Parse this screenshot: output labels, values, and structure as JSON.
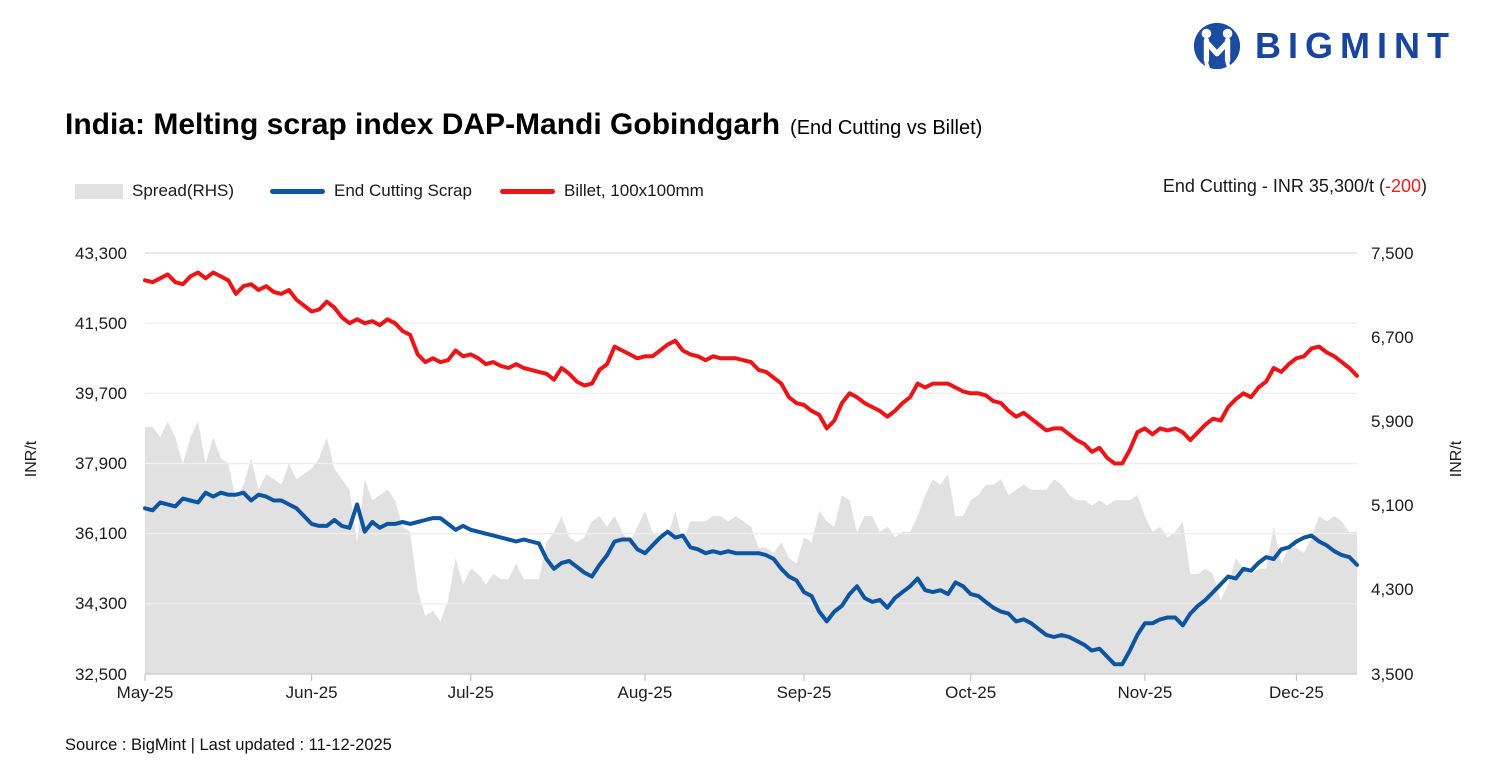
{
  "logo": {
    "text": "BIGMINT",
    "icon": "bigmint-people-m-icon",
    "brand_color": "#1845A0"
  },
  "title": {
    "main": "India: Melting scrap index DAP-Mandi Gobindgarh",
    "suffix": "(End Cutting vs Billet)"
  },
  "legend": {
    "items": [
      {
        "label": "Spread(RHS)",
        "swatch": "area",
        "color": "#e1e1e1"
      },
      {
        "label": "End Cutting Scrap",
        "swatch": "line",
        "color": "#0D55A1"
      },
      {
        "label": "Billet, 100x100mm",
        "swatch": "line",
        "color": "#EB1416"
      }
    ]
  },
  "annotation": {
    "prefix": "End Cutting - INR 35,300/t (",
    "delta": "-200",
    "suffix": ")"
  },
  "source": "Source : BigMint | Last updated : 11-12-2025",
  "chart_data": {
    "type": "line",
    "title": "India: Melting scrap index DAP-Mandi Gobindgarh (End Cutting vs Billet)",
    "x_range": "May-25 to 11-Dec-25, daily (weekdays)",
    "grid": "horizontal-only",
    "legend_position": "top-left",
    "left_axis": {
      "label": "INR/t",
      "min": 32500,
      "max": 43300,
      "tick_values": [
        43300,
        41500,
        39700,
        37900,
        36100,
        34300,
        32500
      ],
      "tick_labels": [
        "43,300",
        "41,500",
        "39,700",
        "37,900",
        "36,100",
        "34,300",
        "32,500"
      ]
    },
    "right_axis": {
      "label": "INR/t",
      "min": 3500,
      "max": 7500,
      "tick_values": [
        7500,
        6700,
        5900,
        5100,
        4300,
        3500
      ],
      "tick_labels": [
        "7,500",
        "6,700",
        "5,900",
        "5,100",
        "4,300",
        "3,500"
      ]
    },
    "x_ticks": [
      {
        "label": "May-25",
        "index": 0
      },
      {
        "label": "Jun-25",
        "index": 22
      },
      {
        "label": "Jul-25",
        "index": 43
      },
      {
        "label": "Aug-25",
        "index": 66
      },
      {
        "label": "Sep-25",
        "index": 87
      },
      {
        "label": "Oct-25",
        "index": 109
      },
      {
        "label": "Nov-25",
        "index": 132
      },
      {
        "label": "Dec-25",
        "index": 152
      }
    ],
    "series": [
      {
        "id": "scrap",
        "name": "End Cutting Scrap",
        "axis": "left",
        "color": "#0D55A1",
        "last_value": 35300,
        "last_change": -200,
        "values": [
          36750,
          36700,
          36900,
          36850,
          36800,
          37000,
          36950,
          36900,
          37150,
          37050,
          37150,
          37100,
          37100,
          37150,
          36950,
          37100,
          37050,
          36950,
          36950,
          36850,
          36750,
          36550,
          36350,
          36300,
          36300,
          36450,
          36300,
          36250,
          36850,
          36150,
          36400,
          36250,
          36350,
          36350,
          36400,
          36350,
          36400,
          36450,
          36500,
          36500,
          36350,
          36200,
          36300,
          36200,
          36150,
          36100,
          36050,
          36000,
          35950,
          35900,
          35950,
          35900,
          35850,
          35450,
          35200,
          35350,
          35400,
          35250,
          35100,
          35000,
          35300,
          35550,
          35900,
          35950,
          35950,
          35700,
          35600,
          35800,
          36000,
          36150,
          36000,
          36050,
          35750,
          35700,
          35600,
          35650,
          35600,
          35650,
          35600,
          35600,
          35600,
          35600,
          35550,
          35450,
          35200,
          35000,
          34900,
          34600,
          34500,
          34100,
          33850,
          34100,
          34250,
          34550,
          34750,
          34450,
          34350,
          34400,
          34200,
          34450,
          34600,
          34750,
          34950,
          34650,
          34600,
          34650,
          34550,
          34850,
          34750,
          34550,
          34500,
          34350,
          34200,
          34100,
          34050,
          33850,
          33900,
          33800,
          33650,
          33500,
          33450,
          33500,
          33450,
          33350,
          33250,
          33100,
          33150,
          32950,
          32750,
          32750,
          33100,
          33500,
          33800,
          33800,
          33900,
          33950,
          33950,
          33750,
          34050,
          34250,
          34400,
          34600,
          34800,
          35000,
          34950,
          35200,
          35150,
          35350,
          35500,
          35450,
          35700,
          35750,
          35900,
          36000,
          36050,
          35900,
          35800,
          35650,
          35550,
          35500,
          35300
        ]
      },
      {
        "id": "billet",
        "name": "Billet, 100x100mm",
        "axis": "left",
        "color": "#EB1416",
        "values": [
          42600,
          42550,
          42650,
          42750,
          42550,
          42500,
          42700,
          42800,
          42650,
          42800,
          42700,
          42600,
          42250,
          42450,
          42500,
          42350,
          42450,
          42300,
          42250,
          42350,
          42100,
          41950,
          41800,
          41850,
          42050,
          41900,
          41650,
          41500,
          41600,
          41500,
          41550,
          41450,
          41600,
          41500,
          41300,
          41200,
          40700,
          40500,
          40600,
          40500,
          40550,
          40800,
          40650,
          40700,
          40600,
          40450,
          40500,
          40400,
          40350,
          40450,
          40350,
          40300,
          40250,
          40200,
          40050,
          40350,
          40200,
          40000,
          39900,
          39950,
          40300,
          40450,
          40900,
          40800,
          40700,
          40600,
          40650,
          40650,
          40800,
          40950,
          41050,
          40800,
          40700,
          40650,
          40550,
          40650,
          40600,
          40600,
          40600,
          40550,
          40500,
          40300,
          40250,
          40100,
          39950,
          39600,
          39450,
          39400,
          39250,
          39150,
          38800,
          39000,
          39450,
          39700,
          39600,
          39450,
          39350,
          39250,
          39100,
          39250,
          39450,
          39600,
          39950,
          39850,
          39950,
          39950,
          39950,
          39850,
          39750,
          39700,
          39700,
          39650,
          39500,
          39450,
          39250,
          39100,
          39200,
          39050,
          38900,
          38750,
          38800,
          38800,
          38650,
          38500,
          38400,
          38200,
          38300,
          38050,
          37900,
          37900,
          38250,
          38700,
          38800,
          38650,
          38800,
          38750,
          38800,
          38700,
          38500,
          38700,
          38900,
          39050,
          39000,
          39350,
          39550,
          39700,
          39600,
          39850,
          40000,
          40350,
          40250,
          40450,
          40600,
          40650,
          40850,
          40900,
          40750,
          40650,
          40500,
          40350,
          40150
        ]
      },
      {
        "id": "spread",
        "name": "Spread(RHS)",
        "axis": "right",
        "color": "#e1e1e1",
        "style": "area",
        "derived_from": [
          "billet",
          "scrap"
        ],
        "formula": "billet - scrap"
      }
    ]
  }
}
